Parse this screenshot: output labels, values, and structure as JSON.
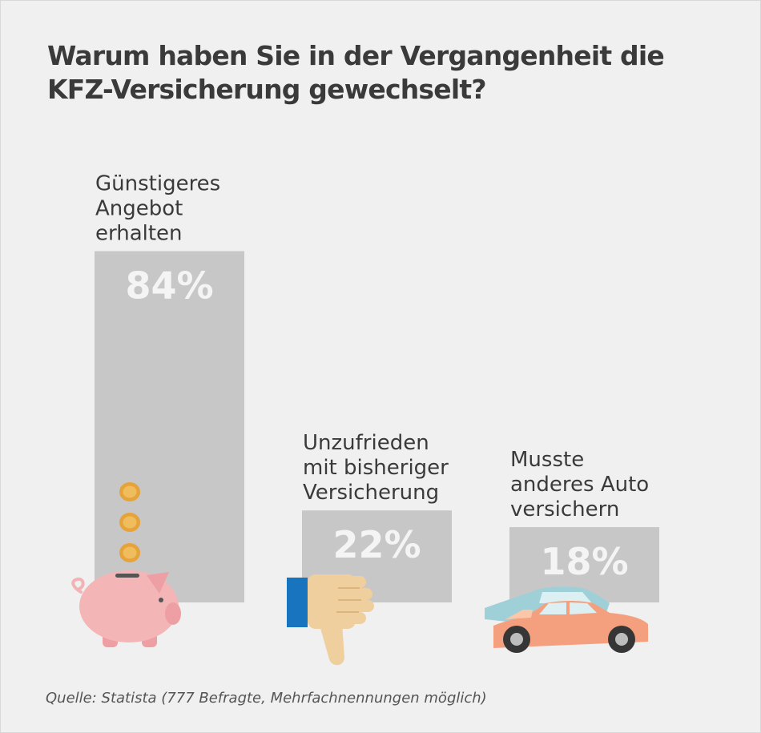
{
  "title_lines": [
    "Warum haben Sie in der Vergangenheit die",
    "KFZ-Versicherung gewechselt?"
  ],
  "source": "Quelle: Statista (777 Befragte, Mehrfachnennungen möglich)",
  "colors": {
    "bar": "#c7c7c7",
    "background": "#f0f0f0",
    "value_text": "#f4f4f4",
    "label_text": "#3a3a3a"
  },
  "icons": [
    "piggy-bank-icon",
    "coin-icon",
    "thumbs-down-icon",
    "car-icon"
  ],
  "chart_data": {
    "type": "bar",
    "title": "Warum haben Sie in der Vergangenheit die KFZ-Versicherung gewechselt?",
    "categories": [
      [
        "Günstigeres",
        "Angebot",
        "erhalten"
      ],
      [
        "Unzufrieden",
        "mit bisheriger",
        "Versicherung"
      ],
      [
        "Musste",
        "anderes Auto",
        "versichern"
      ]
    ],
    "values": [
      84,
      22,
      18
    ],
    "value_labels": [
      "84%",
      "22%",
      "18%"
    ],
    "unit": "%",
    "ylim": [
      0,
      100
    ],
    "grid": false,
    "legend": "none"
  }
}
